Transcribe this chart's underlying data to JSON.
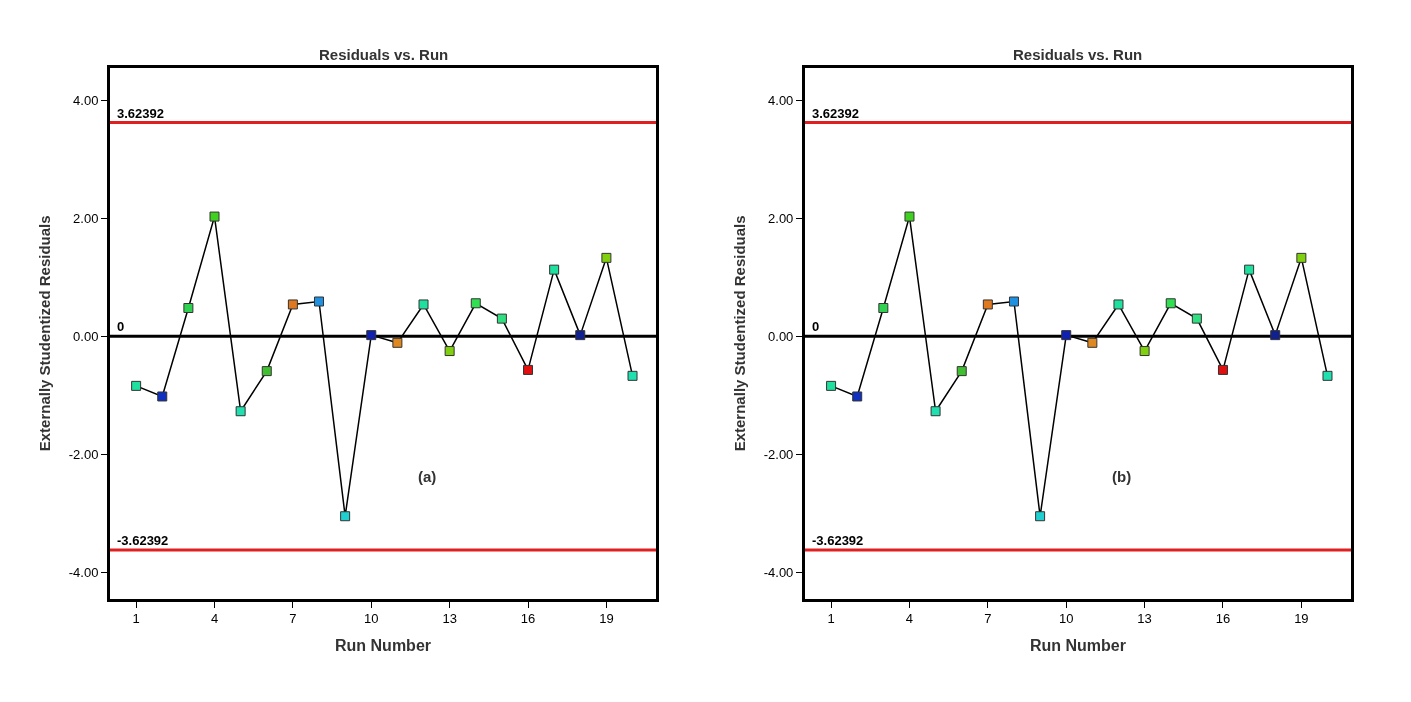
{
  "chart_data": [
    {
      "type": "line",
      "title": "Residuals vs. Run",
      "xlabel": "Run Number",
      "ylabel": "Externally Studentized Residuals",
      "x": [
        1,
        2,
        3,
        4,
        5,
        6,
        7,
        8,
        9,
        10,
        11,
        12,
        13,
        14,
        15,
        16,
        17,
        18,
        19,
        20
      ],
      "series": [
        {
          "color": "#000000",
          "values": [
            -0.84,
            -1.02,
            0.48,
            2.03,
            -1.27,
            -0.59,
            0.54,
            0.59,
            -3.05,
            0.02,
            -0.11,
            0.54,
            -0.25,
            0.56,
            0.3,
            -0.57,
            1.13,
            0.02,
            1.33,
            -0.67
          ],
          "colors": [
            "#20e0a0",
            "#1030c0",
            "#30d050",
            "#40d020",
            "#20e0b0",
            "#40c030",
            "#e07820",
            "#2090e0",
            "#20d0d0",
            "#1020b0",
            "#e08820",
            "#20e0a0",
            "#80d010",
            "#30e050",
            "#30e080",
            "#e01010",
            "#20e0a0",
            "#102090",
            "#80d010",
            "#20e0b0"
          ]
        }
      ],
      "xlim": [
        0,
        20.9
      ],
      "xticks": [
        1,
        4,
        7,
        10,
        13,
        16,
        19
      ],
      "ylim": [
        -4.45,
        4.55
      ],
      "yticks": [
        {
          "value": 4,
          "label": "4.00"
        },
        {
          "value": 2,
          "label": "2.00"
        },
        {
          "value": 0,
          "label": "0.00"
        },
        {
          "value": -2,
          "label": "-2.00"
        },
        {
          "value": -4,
          "label": "-4.00"
        }
      ],
      "ref_lines": [
        {
          "axis": "y",
          "value": 3.62392,
          "label": "3.62392",
          "color": "#e02020"
        },
        {
          "axis": "y",
          "value": 0,
          "label": "0",
          "color": "#000000"
        },
        {
          "axis": "y",
          "value": -3.62392,
          "label": "-3.62392",
          "color": "#e02020"
        }
      ],
      "annotations": [
        "(a)"
      ],
      "marker": "square",
      "grid": false
    },
    {
      "type": "line",
      "title": "Residuals vs. Run",
      "xlabel": "Run Number",
      "ylabel": "Externally Studentized Residuals",
      "x": [
        1,
        2,
        3,
        4,
        5,
        6,
        7,
        8,
        9,
        10,
        11,
        12,
        13,
        14,
        15,
        16,
        17,
        18,
        19,
        20
      ],
      "series": [
        {
          "color": "#000000",
          "values": [
            -0.84,
            -1.02,
            0.48,
            2.03,
            -1.27,
            -0.59,
            0.54,
            0.59,
            -3.05,
            0.02,
            -0.11,
            0.54,
            -0.25,
            0.56,
            0.3,
            -0.57,
            1.13,
            0.02,
            1.33,
            -0.67
          ],
          "colors": [
            "#20e0a0",
            "#1030c0",
            "#30d050",
            "#40d020",
            "#20e0b0",
            "#40c030",
            "#e07820",
            "#2090e0",
            "#20d0d0",
            "#1020b0",
            "#e08820",
            "#20e0a0",
            "#80d010",
            "#30e050",
            "#30e080",
            "#e01010",
            "#20e0a0",
            "#102090",
            "#80d010",
            "#20e0b0"
          ]
        }
      ],
      "xlim": [
        0,
        20.9
      ],
      "xticks": [
        1,
        4,
        7,
        10,
        13,
        16,
        19
      ],
      "ylim": [
        -4.45,
        4.55
      ],
      "yticks": [
        {
          "value": 4,
          "label": "4.00"
        },
        {
          "value": 2,
          "label": "2.00"
        },
        {
          "value": 0,
          "label": "0.00"
        },
        {
          "value": -2,
          "label": "-2.00"
        },
        {
          "value": -4,
          "label": "-4.00"
        }
      ],
      "ref_lines": [
        {
          "axis": "y",
          "value": 3.62392,
          "label": "3.62392",
          "color": "#e02020"
        },
        {
          "axis": "y",
          "value": 0,
          "label": "0",
          "color": "#000000"
        },
        {
          "axis": "y",
          "value": -3.62392,
          "label": "-3.62392",
          "color": "#e02020"
        }
      ],
      "annotations": [
        "(b)"
      ],
      "marker": "square",
      "grid": false
    }
  ]
}
